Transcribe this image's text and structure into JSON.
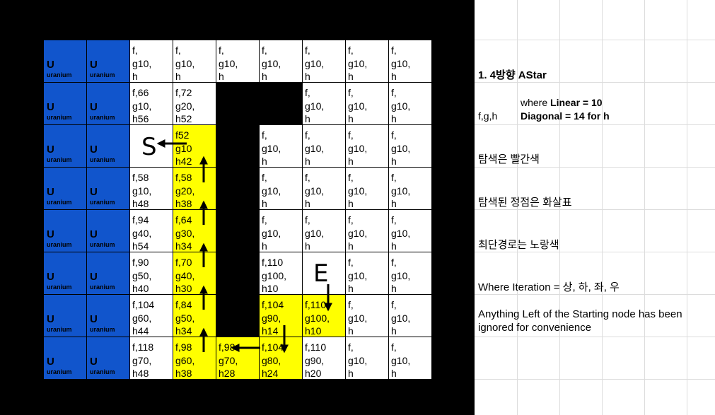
{
  "board": {
    "uranium_symbol": "U",
    "uranium_name": "uranium",
    "start_label": "S",
    "end_label": "E",
    "rows": [
      [
        {
          "k": "u"
        },
        {
          "k": "u"
        },
        {
          "k": "w",
          "t": "f,\ng10,\nh"
        },
        {
          "k": "w",
          "t": "f,\ng10,\nh"
        },
        {
          "k": "w",
          "t": "f,\ng10,\nh"
        },
        {
          "k": "w",
          "t": "f,\ng10,\nh"
        },
        {
          "k": "w",
          "t": "f,\ng10,\nh"
        },
        {
          "k": "w",
          "t": "f,\ng10,\nh"
        },
        {
          "k": "w",
          "t": "f,\ng10,\nh"
        }
      ],
      [
        {
          "k": "u"
        },
        {
          "k": "u"
        },
        {
          "k": "w",
          "t": "f,66\ng10,\nh56"
        },
        {
          "k": "w",
          "t": "f,72\ng20,\nh52"
        },
        {
          "k": "b"
        },
        {
          "k": "b"
        },
        {
          "k": "w",
          "t": "f,\ng10,\nh"
        },
        {
          "k": "w",
          "t": "f,\ng10,\nh"
        },
        {
          "k": "w",
          "t": "f,\ng10,\nh"
        }
      ],
      [
        {
          "k": "u"
        },
        {
          "k": "u"
        },
        {
          "k": "s"
        },
        {
          "k": "y",
          "t": "f52\ng10\nh42"
        },
        {
          "k": "b"
        },
        {
          "k": "w",
          "t": "f,\ng10,\nh"
        },
        {
          "k": "w",
          "t": "f,\ng10,\nh"
        },
        {
          "k": "w",
          "t": "f,\ng10,\nh"
        },
        {
          "k": "w",
          "t": "f,\ng10,\nh"
        }
      ],
      [
        {
          "k": "u"
        },
        {
          "k": "u"
        },
        {
          "k": "w",
          "t": "f,58\ng10,\nh48"
        },
        {
          "k": "y",
          "t": "f,58\ng20,\nh38"
        },
        {
          "k": "b"
        },
        {
          "k": "w",
          "t": "f,\ng10,\nh"
        },
        {
          "k": "w",
          "t": "f,\ng10,\nh"
        },
        {
          "k": "w",
          "t": "f,\ng10,\nh"
        },
        {
          "k": "w",
          "t": "f,\ng10,\nh"
        }
      ],
      [
        {
          "k": "u"
        },
        {
          "k": "u"
        },
        {
          "k": "w",
          "t": "f,94\ng40,\nh54"
        },
        {
          "k": "y",
          "t": "f,64\ng30,\nh34"
        },
        {
          "k": "b"
        },
        {
          "k": "w",
          "t": "f,\ng10,\nh"
        },
        {
          "k": "w",
          "t": "f,\ng10,\nh"
        },
        {
          "k": "w",
          "t": "f,\ng10,\nh"
        },
        {
          "k": "w",
          "t": "f,\ng10,\nh"
        }
      ],
      [
        {
          "k": "u"
        },
        {
          "k": "u"
        },
        {
          "k": "w",
          "t": "f,90\ng50,\nh40"
        },
        {
          "k": "y",
          "t": "f,70\ng40,\nh30"
        },
        {
          "k": "b"
        },
        {
          "k": "w",
          "t": "f,110\ng100,\nh10"
        },
        {
          "k": "e"
        },
        {
          "k": "w",
          "t": "f,\ng10,\nh"
        },
        {
          "k": "w",
          "t": "f,\ng10,\nh"
        }
      ],
      [
        {
          "k": "u"
        },
        {
          "k": "u"
        },
        {
          "k": "w",
          "t": "f,104\ng60,\nh44"
        },
        {
          "k": "y",
          "t": "f,84\ng50,\nh34"
        },
        {
          "k": "b"
        },
        {
          "k": "y",
          "t": "f,104\ng90,\nh14"
        },
        {
          "k": "y",
          "t": "f,110\ng100,\nh10"
        },
        {
          "k": "w",
          "t": "f,\ng10,\nh"
        },
        {
          "k": "w",
          "t": "f,\ng10,\nh"
        }
      ],
      [
        {
          "k": "u"
        },
        {
          "k": "u"
        },
        {
          "k": "w",
          "t": "f,118\ng70,\nh48"
        },
        {
          "k": "y",
          "t": "f,98\ng60,\nh38"
        },
        {
          "k": "y",
          "t": "f,98\ng70,\nh28"
        },
        {
          "k": "y",
          "t": "f,104\ng80,\nh24"
        },
        {
          "k": "w",
          "t": "f,110\ng90,\nh20"
        },
        {
          "k": "w",
          "t": "f,\ng10,\nh"
        },
        {
          "k": "w",
          "t": "f,\ng10,\nh"
        }
      ]
    ]
  },
  "notes": {
    "title": "1. 4방향 AStar",
    "fgh": "f,g,h",
    "where_prefix": "where ",
    "linear_bold": "Linear = 10",
    "diagonal_bold": "Diagonal = 14 for h",
    "explored_red": "탐색은 빨간색",
    "explored_vertex_arrow": "탐색된 정점은 화살표",
    "shortest_yellow": "최단경로는 노랑색",
    "iteration": "Where Iteration = 상, 하, 좌, 우",
    "ignored_line1": "Anything Left of the Starting node has been",
    "ignored_line2": " ignored for convenience"
  },
  "colors": {
    "uranium_blue": "#1155cc",
    "path_yellow": "#ffff00",
    "wall_black": "#000000"
  }
}
